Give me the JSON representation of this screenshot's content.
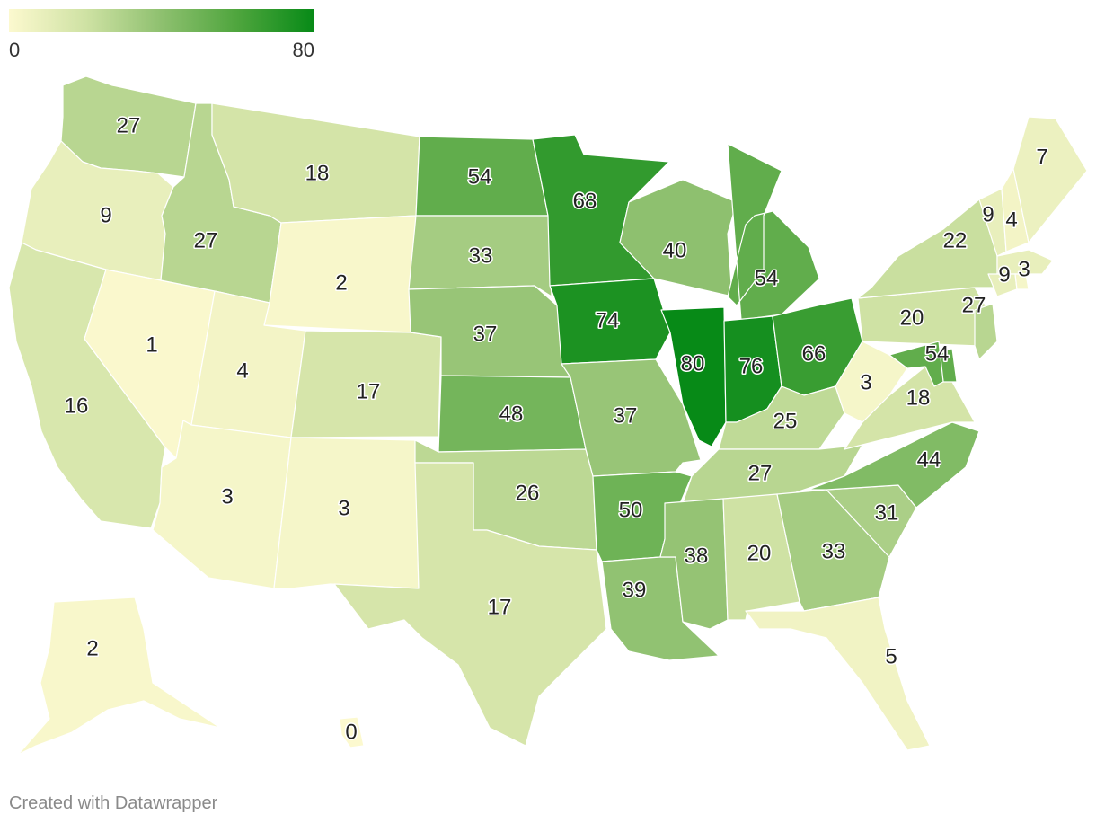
{
  "legend": {
    "min_label": "0",
    "max_label": "80",
    "min_value": 0,
    "max_value": 80,
    "colors": [
      "#fcf9cf",
      "#cfe2a4",
      "#8ec06f",
      "#4ea53d",
      "#078a17"
    ]
  },
  "footer": {
    "credit": "Created with Datawrapper"
  },
  "chart_data": {
    "type": "choropleth",
    "region": "United States",
    "values": {
      "WA": 27,
      "OR": 9,
      "CA": 16,
      "NV": 1,
      "ID": 27,
      "MT": 18,
      "WY": 2,
      "UT": 4,
      "AZ": 3,
      "CO": 17,
      "NM": 3,
      "ND": 54,
      "SD": 33,
      "NE": 37,
      "KS": 48,
      "OK": 26,
      "TX": 17,
      "MN": 68,
      "IA": 74,
      "MO": 37,
      "AR": 50,
      "LA": 39,
      "WI": 40,
      "IL": 80,
      "MS": 38,
      "MI": 54,
      "IN": 76,
      "KY": 25,
      "TN": 27,
      "AL": 20,
      "OH": 66,
      "GA": 33,
      "FL": 5,
      "SC": 31,
      "NC": 44,
      "VA": 18,
      "WV": 3,
      "PA": 20,
      "NY": 22,
      "VT": 9,
      "NH": 4,
      "ME": 7,
      "MA": 9,
      "RI": 3,
      "CT": 9,
      "NJ": 27,
      "DE": 54,
      "MD": 54,
      "AK": 2,
      "HI": 0
    },
    "printed_labels": [
      "27",
      "9",
      "16",
      "1",
      "27",
      "18",
      "2",
      "4",
      "3",
      "17",
      "3",
      "54",
      "33",
      "37",
      "48",
      "26",
      "17",
      "68",
      "74",
      "37",
      "50",
      "39",
      "40",
      "80",
      "38",
      "54",
      "76",
      "25",
      "27",
      "20",
      "66",
      "33",
      "5",
      "31",
      "44",
      "18",
      "3",
      "20",
      "22",
      "9",
      "4",
      "7",
      "9",
      "3",
      "27",
      "54",
      "2",
      "0"
    ]
  }
}
